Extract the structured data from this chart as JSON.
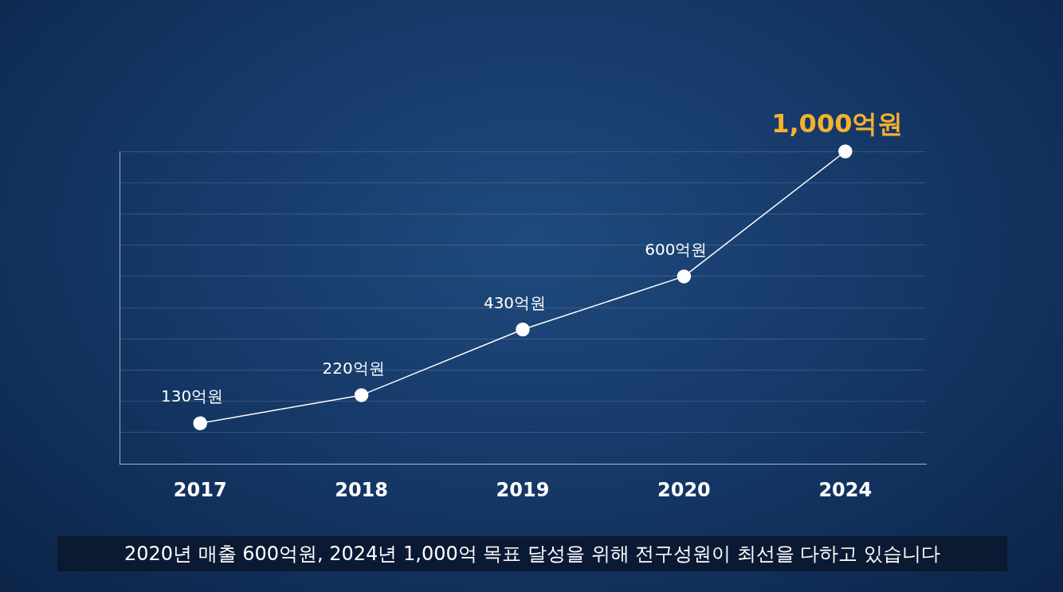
{
  "chart_data": {
    "type": "line",
    "categories": [
      "2017",
      "2018",
      "2019",
      "2020",
      "2024"
    ],
    "series": [
      {
        "color": "#ffffff",
        "values": [
          130,
          220,
          430,
          600,
          1000
        ],
        "value_labels": [
          "130억원",
          "220억원",
          "430억원",
          "600억원",
          "1,000억원"
        ]
      }
    ],
    "marker": "circle",
    "grid": "y",
    "tick_labels": "x",
    "legend": false,
    "annotations": [
      "2020년 매출 600억원, 2024년 1,000억 목표 달성을 위해 전구성원이 최선을 다하고 있습니다"
    ]
  }
}
